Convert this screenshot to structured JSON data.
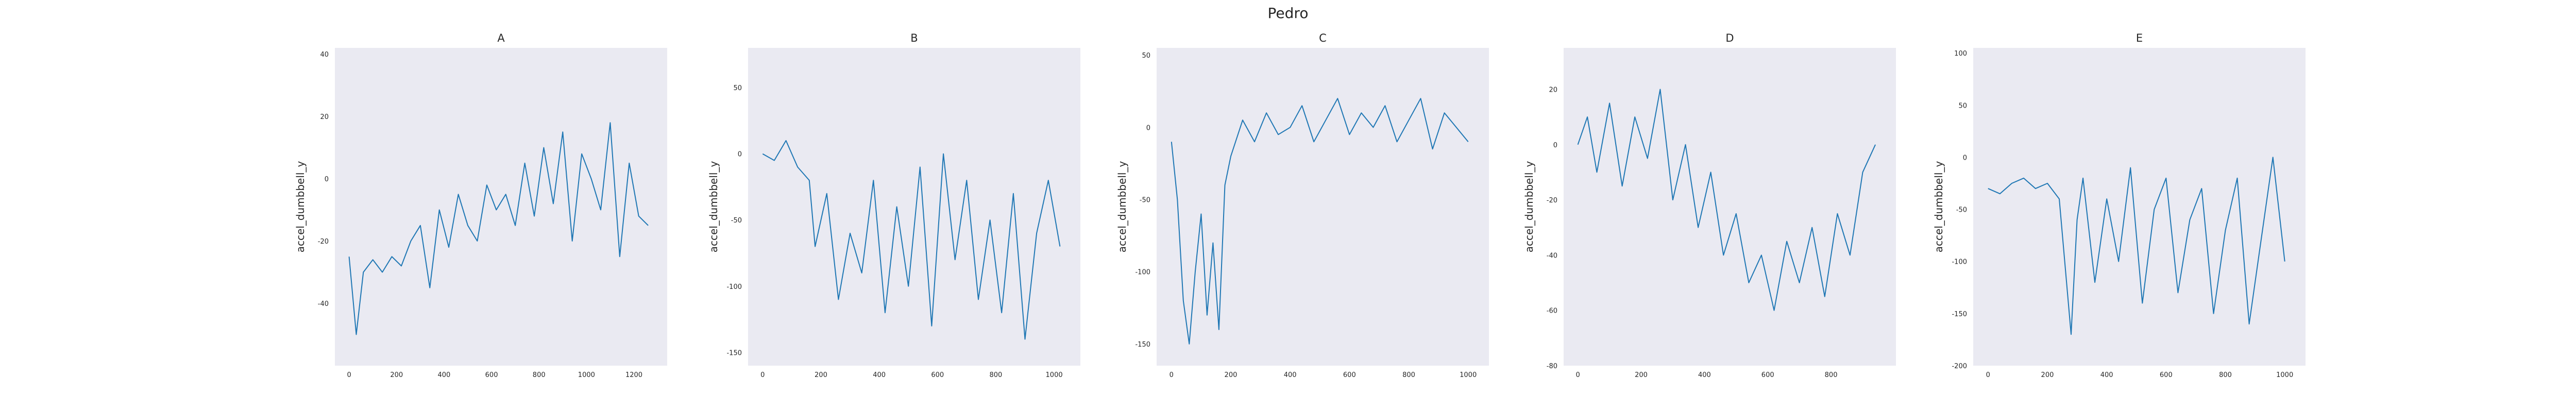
{
  "figure": {
    "suptitle": "Pedro"
  },
  "chart_data": [
    {
      "type": "line",
      "title": "A",
      "xlabel": "",
      "ylabel": "accel_dumbbell_y",
      "xlim": [
        -60,
        1340
      ],
      "ylim": [
        -60,
        42
      ],
      "grid": false,
      "xticks": [
        0,
        200,
        400,
        600,
        800,
        1000,
        1200
      ],
      "xtick_labels": [
        "0",
        "200",
        "400",
        "600",
        "800",
        "1000",
        "1200"
      ],
      "yticks": [
        -40,
        -20,
        0,
        20,
        40
      ],
      "ytick_labels": [
        "-40",
        "-20",
        "0",
        "20",
        "40"
      ],
      "color": "#1f77b4",
      "series": [
        {
          "x": [
            0,
            30,
            60,
            100,
            140,
            180,
            220,
            260,
            300,
            340,
            380,
            420,
            460,
            500,
            540,
            580,
            620,
            660,
            700,
            740,
            780,
            820,
            860,
            900,
            940,
            980,
            1020,
            1060,
            1100,
            1140,
            1180,
            1220,
            1260
          ],
          "y": [
            -25,
            -50,
            -30,
            -26,
            -30,
            -25,
            -28,
            -20,
            -15,
            -35,
            -10,
            -22,
            -5,
            -15,
            -20,
            -2,
            -10,
            -5,
            -15,
            5,
            -12,
            10,
            -8,
            15,
            -20,
            8,
            0,
            -10,
            18,
            -25,
            5,
            -12,
            -15
          ]
        }
      ]
    },
    {
      "type": "line",
      "title": "B",
      "xlabel": "",
      "ylabel": "accel_dumbbell_y",
      "xlim": [
        -50,
        1090
      ],
      "ylim": [
        -160,
        80
      ],
      "grid": false,
      "xticks": [
        0,
        200,
        400,
        600,
        800,
        1000
      ],
      "xtick_labels": [
        "0",
        "200",
        "400",
        "600",
        "800",
        "1000"
      ],
      "yticks": [
        -150,
        -100,
        -50,
        0,
        50
      ],
      "ytick_labels": [
        "-150",
        "-100",
        "-50",
        "0",
        "50"
      ],
      "color": "#1f77b4",
      "series": [
        {
          "x": [
            0,
            40,
            80,
            120,
            160,
            180,
            220,
            260,
            300,
            340,
            380,
            420,
            460,
            500,
            540,
            580,
            620,
            660,
            700,
            740,
            780,
            820,
            860,
            900,
            940,
            980,
            1020
          ],
          "y": [
            0,
            -5,
            10,
            -10,
            -20,
            -70,
            -30,
            -110,
            -60,
            -90,
            -20,
            -120,
            -40,
            -100,
            -10,
            -130,
            0,
            -80,
            -20,
            -110,
            -50,
            -120,
            -30,
            -140,
            -60,
            -20,
            -70
          ]
        }
      ]
    },
    {
      "type": "line",
      "title": "C",
      "xlabel": "",
      "ylabel": "accel_dumbbell_y",
      "xlim": [
        -50,
        1070
      ],
      "ylim": [
        -165,
        55
      ],
      "grid": false,
      "xticks": [
        0,
        200,
        400,
        600,
        800,
        1000
      ],
      "xtick_labels": [
        "0",
        "200",
        "400",
        "600",
        "800",
        "1000"
      ],
      "yticks": [
        -150,
        -100,
        -50,
        0,
        50
      ],
      "ytick_labels": [
        "-150",
        "-100",
        "-50",
        "0",
        "50"
      ],
      "color": "#1f77b4",
      "series": [
        {
          "x": [
            0,
            20,
            40,
            60,
            80,
            100,
            120,
            140,
            160,
            180,
            200,
            240,
            280,
            320,
            360,
            400,
            440,
            480,
            520,
            560,
            600,
            640,
            680,
            720,
            760,
            800,
            840,
            880,
            920,
            960,
            1000
          ],
          "y": [
            -10,
            -50,
            -120,
            -150,
            -100,
            -60,
            -130,
            -80,
            -140,
            -40,
            -20,
            5,
            -10,
            10,
            -5,
            0,
            15,
            -10,
            5,
            20,
            -5,
            10,
            0,
            15,
            -10,
            5,
            20,
            -15,
            10,
            0,
            -10
          ]
        }
      ]
    },
    {
      "type": "line",
      "title": "D",
      "xlabel": "",
      "ylabel": "accel_dumbbell_y",
      "xlim": [
        -45,
        1005
      ],
      "ylim": [
        -80,
        35
      ],
      "grid": false,
      "xticks": [
        0,
        200,
        400,
        600,
        800
      ],
      "xtick_labels": [
        "0",
        "200",
        "400",
        "600",
        "800"
      ],
      "yticks": [
        -80,
        -60,
        -40,
        -20,
        0,
        20
      ],
      "ytick_labels": [
        "-80",
        "-60",
        "-40",
        "-20",
        "0",
        "20"
      ],
      "color": "#1f77b4",
      "series": [
        {
          "x": [
            0,
            30,
            60,
            100,
            140,
            180,
            220,
            260,
            300,
            340,
            380,
            420,
            460,
            500,
            540,
            580,
            620,
            660,
            700,
            740,
            780,
            820,
            860,
            900,
            940
          ],
          "y": [
            0,
            10,
            -10,
            15,
            -15,
            10,
            -5,
            20,
            -20,
            0,
            -30,
            -10,
            -40,
            -25,
            -50,
            -40,
            -60,
            -35,
            -50,
            -30,
            -55,
            -25,
            -40,
            -10,
            0
          ]
        }
      ]
    },
    {
      "type": "line",
      "title": "E",
      "xlabel": "",
      "ylabel": "accel_dumbbell_y",
      "xlim": [
        -50,
        1070
      ],
      "ylim": [
        -200,
        105
      ],
      "grid": false,
      "xticks": [
        0,
        200,
        400,
        600,
        800,
        1000
      ],
      "xtick_labels": [
        "0",
        "200",
        "400",
        "600",
        "800",
        "1000"
      ],
      "yticks": [
        -200,
        -150,
        -100,
        -50,
        0,
        50,
        100
      ],
      "ytick_labels": [
        "-200",
        "-150",
        "-100",
        "-50",
        "0",
        "50",
        "100"
      ],
      "color": "#1f77b4",
      "series": [
        {
          "x": [
            0,
            40,
            80,
            120,
            160,
            200,
            240,
            280,
            300,
            320,
            360,
            400,
            440,
            480,
            520,
            560,
            600,
            640,
            680,
            720,
            760,
            800,
            840,
            880,
            920,
            960,
            1000
          ],
          "y": [
            -30,
            -35,
            -25,
            -20,
            -30,
            -25,
            -40,
            -170,
            -60,
            -20,
            -120,
            -40,
            -100,
            -10,
            -140,
            -50,
            -20,
            -130,
            -60,
            -30,
            -150,
            -70,
            -20,
            -160,
            -80,
            0,
            -100
          ]
        }
      ]
    }
  ]
}
